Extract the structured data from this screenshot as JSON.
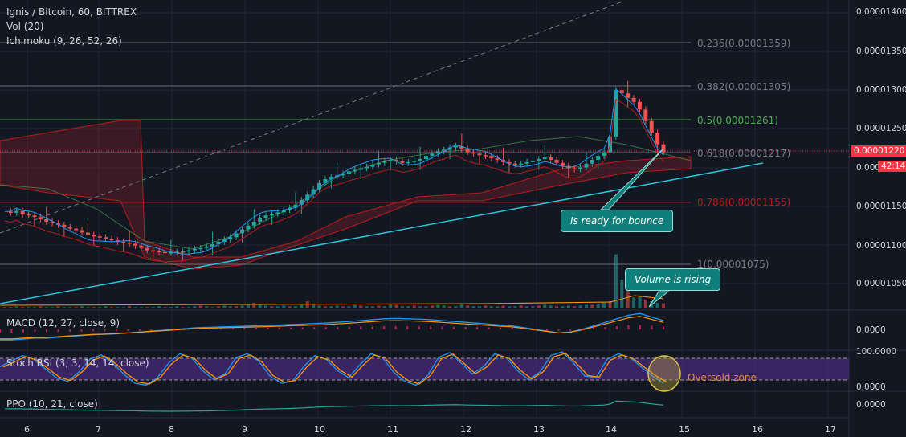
{
  "legend": {
    "title": "Ignis / Bitcoin, 60, BITTREX",
    "vol": "Vol (20)",
    "ichimoku": "Ichimoku (9, 26, 52, 26)",
    "macd": "MACD (12, 27, close, 9)",
    "stoch": "Stoch RSI (3, 3, 14, 14, close)",
    "ppo": "PPO (10, 21, close)"
  },
  "price_axis": {
    "ticks": [
      "0.00001400",
      "0.00001350",
      "0.00001300",
      "0.00001250",
      "0.00001150",
      "0.00001100",
      "0.00001050"
    ],
    "partial_tick": "0.000",
    "current_price": "0.00001220",
    "countdown": "42:14",
    "macd_tick": "0.0000",
    "stoch_top": "100.0000",
    "stoch_bottom": "0.0000",
    "ppo_tick": "0.0000"
  },
  "time_axis": [
    "6",
    "7",
    "8",
    "9",
    "10",
    "11",
    "12",
    "13",
    "14",
    "15",
    "16",
    "17"
  ],
  "fib_levels": [
    {
      "label": "0.236(0.00001359)",
      "color": "#787b86"
    },
    {
      "label": "0.382(0.00001305)",
      "color": "#787b86"
    },
    {
      "label": "0.5(0.00001261)",
      "color": "#4caf50"
    },
    {
      "label": "0.618(0.00001217)",
      "color": "#787b86"
    },
    {
      "label": "0.786(0.00001155)",
      "color": "#b71c1c"
    },
    {
      "label": "1(0.00001075)",
      "color": "#787b86"
    }
  ],
  "annotations": {
    "bounce": "Is ready for bounce",
    "volume": "Volume is rising",
    "oversold": "Oversold zone"
  },
  "colors": {
    "background": "#131722",
    "up": "#26a69a",
    "down": "#ef5350",
    "trendline": "#26c6da",
    "callout": "#0e7f7a",
    "stoch_band": "#4a2a7a",
    "price_tag": "#f23645"
  },
  "price_series": [
    1.143,
    1.1415,
    1.144,
    1.1395,
    1.138,
    1.136,
    1.133,
    1.13,
    1.128,
    1.126,
    1.123,
    1.121,
    1.119,
    1.116,
    1.113,
    1.111,
    1.11,
    1.108,
    1.106,
    1.104,
    1.103,
    1.1015,
    1.099,
    1.096,
    1.093,
    1.092,
    1.091,
    1.09,
    1.0905,
    1.091,
    1.0915,
    1.093,
    1.095,
    1.096,
    1.098,
    1.101,
    1.104,
    1.107,
    1.11,
    1.115,
    1.12,
    1.125,
    1.13,
    1.135,
    1.138,
    1.14,
    1.142,
    1.145,
    1.148,
    1.152,
    1.158,
    1.165,
    1.172,
    1.18,
    1.185,
    1.188,
    1.19,
    1.192,
    1.195,
    1.197,
    1.199,
    1.201,
    1.204,
    1.206,
    1.208,
    1.21,
    1.208,
    1.206,
    1.207,
    1.209,
    1.211,
    1.215,
    1.218,
    1.221,
    1.223,
    1.226,
    1.228,
    1.224,
    1.22,
    1.218,
    1.216,
    1.215,
    1.212,
    1.21,
    1.207,
    1.205,
    1.204,
    1.205,
    1.207,
    1.209,
    1.211,
    1.213,
    1.21,
    1.206,
    1.202,
    1.199,
    1.198,
    1.2,
    1.205,
    1.21,
    1.215,
    1.22,
    1.24,
    1.3,
    1.296,
    1.29,
    1.285,
    1.275,
    1.26,
    1.245,
    1.23,
    1.22
  ],
  "volume_series": [
    2,
    2,
    3,
    2,
    2,
    2,
    3,
    2,
    2,
    3,
    2,
    2,
    2,
    3,
    2,
    2,
    2,
    3,
    2,
    2,
    2,
    3,
    2,
    2,
    2,
    2,
    3,
    2,
    2,
    3,
    2,
    2,
    3,
    4,
    3,
    2,
    3,
    4,
    3,
    3,
    4,
    5,
    8,
    6,
    4,
    3,
    3,
    4,
    3,
    3,
    5,
    10,
    7,
    4,
    3,
    3,
    4,
    3,
    3,
    5,
    4,
    3,
    3,
    4,
    3,
    6,
    5,
    3,
    3,
    4,
    3,
    3,
    4,
    5,
    4,
    3,
    3,
    6,
    4,
    3,
    3,
    4,
    3,
    3,
    4,
    3,
    3,
    4,
    3,
    3,
    4,
    5,
    4,
    3,
    3,
    4,
    3,
    4,
    5,
    5,
    6,
    8,
    10,
    75,
    40,
    25,
    15,
    18,
    12,
    10,
    8,
    7
  ],
  "macd_series": [
    -0.6,
    -0.6,
    -0.55,
    -0.5,
    -0.5,
    -0.45,
    -0.4,
    -0.35,
    -0.3,
    -0.28,
    -0.25,
    -0.2,
    -0.15,
    -0.1,
    -0.05,
    0,
    0.05,
    0.1,
    0.12,
    0.14,
    0.16,
    0.18,
    0.2,
    0.22,
    0.25,
    0.28,
    0.3,
    0.33,
    0.36,
    0.4,
    0.45,
    0.5,
    0.55,
    0.6,
    0.62,
    0.6,
    0.58,
    0.55,
    0.5,
    0.45,
    0.4,
    0.35,
    0.3,
    0.25,
    0.2,
    0.1,
    0,
    -0.1,
    -0.2,
    -0.15,
    0,
    0.2,
    0.4,
    0.6,
    0.8,
    0.9,
    0.7,
    0.5
  ],
  "stoch_series": [
    60,
    75,
    90,
    80,
    55,
    30,
    20,
    45,
    80,
    92,
    70,
    40,
    15,
    10,
    30,
    70,
    95,
    85,
    50,
    25,
    40,
    85,
    95,
    75,
    35,
    15,
    20,
    60,
    90,
    80,
    50,
    30,
    65,
    95,
    85,
    45,
    20,
    10,
    35,
    85,
    98,
    70,
    40,
    60,
    95,
    85,
    50,
    25,
    45,
    90,
    100,
    70,
    35,
    30,
    80,
    95,
    85,
    60,
    35,
    15
  ]
}
